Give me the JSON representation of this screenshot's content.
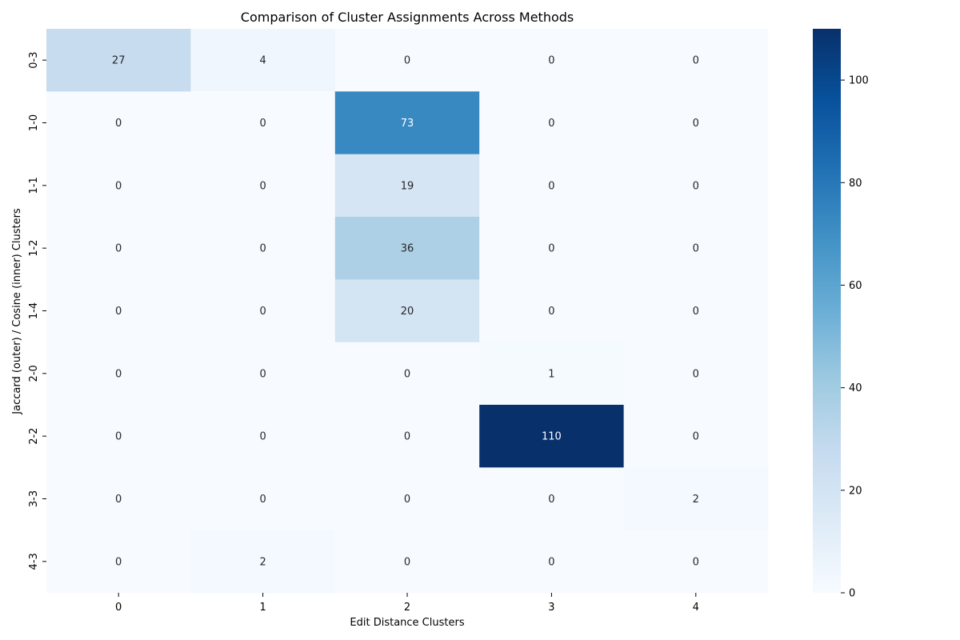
{
  "chart_data": {
    "type": "heatmap",
    "title": "Comparison of Cluster Assignments Across Methods",
    "xlabel": "Edit Distance Clusters",
    "ylabel": "Jaccard (outer) / Cosine (inner) Clusters",
    "x_categories": [
      "0",
      "1",
      "2",
      "3",
      "4"
    ],
    "y_categories": [
      "0-3",
      "1-0",
      "1-1",
      "1-2",
      "1-4",
      "2-0",
      "2-2",
      "3-3",
      "4-3"
    ],
    "values": [
      [
        27,
        4,
        0,
        0,
        0
      ],
      [
        0,
        0,
        73,
        0,
        0
      ],
      [
        0,
        0,
        19,
        0,
        0
      ],
      [
        0,
        0,
        36,
        0,
        0
      ],
      [
        0,
        0,
        20,
        0,
        0
      ],
      [
        0,
        0,
        0,
        1,
        0
      ],
      [
        0,
        0,
        0,
        110,
        0
      ],
      [
        0,
        0,
        0,
        0,
        2
      ],
      [
        0,
        2,
        0,
        0,
        0
      ]
    ],
    "colorbar": {
      "min": 0,
      "max": 110,
      "ticks": [
        0,
        20,
        40,
        60,
        80,
        100
      ],
      "colormap": "Blues"
    },
    "annotated": true
  }
}
